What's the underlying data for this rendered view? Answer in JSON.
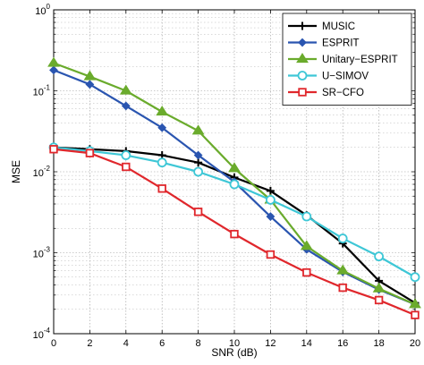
{
  "chart_data": {
    "type": "line",
    "title": "",
    "xlabel": "SNR (dB)",
    "ylabel": "MSE",
    "xlim": [
      0,
      20
    ],
    "ylim": [
      0.0001,
      1
    ],
    "y_scale": "log",
    "x_ticks": [
      0,
      2,
      4,
      6,
      8,
      10,
      12,
      14,
      16,
      18,
      20
    ],
    "y_tick_labels": [
      {
        "base": "10",
        "exp": "-4"
      },
      {
        "base": "10",
        "exp": "-3"
      },
      {
        "base": "10",
        "exp": "-2"
      },
      {
        "base": "10",
        "exp": "-1"
      },
      {
        "base": "10",
        "exp": "0"
      }
    ],
    "grid": true,
    "legend_position": "top-right",
    "x": [
      0,
      2,
      4,
      6,
      8,
      10,
      12,
      14,
      16,
      18,
      20
    ],
    "series": [
      {
        "name": "MUSIC",
        "color": "#000000",
        "marker": "plus",
        "values": [
          0.02,
          0.019,
          0.018,
          0.016,
          0.013,
          0.0085,
          0.0058,
          0.0029,
          0.0013,
          0.00045,
          0.00024
        ]
      },
      {
        "name": "ESPRIT",
        "color": "#2a55b0",
        "marker": "diamond",
        "values": [
          0.18,
          0.12,
          0.065,
          0.035,
          0.016,
          0.0075,
          0.0028,
          0.0011,
          0.00058,
          0.00035,
          0.00023
        ]
      },
      {
        "name": "Unitary−ESPRIT",
        "color": "#6aab2c",
        "marker": "triangle",
        "values": [
          0.22,
          0.15,
          0.1,
          0.055,
          0.032,
          0.011,
          0.0045,
          0.0012,
          0.0006,
          0.00036,
          0.00023
        ]
      },
      {
        "name": "U−SIMOV",
        "color": "#3ec7d6",
        "marker": "circle",
        "values": [
          0.02,
          0.018,
          0.016,
          0.013,
          0.01,
          0.007,
          0.0045,
          0.0028,
          0.0015,
          0.0009,
          0.0005
        ]
      },
      {
        "name": "SR−CFO",
        "color": "#e0272c",
        "marker": "square",
        "values": [
          0.019,
          0.017,
          0.0115,
          0.0062,
          0.0032,
          0.0017,
          0.00095,
          0.00057,
          0.00037,
          0.00026,
          0.00017
        ]
      }
    ]
  }
}
